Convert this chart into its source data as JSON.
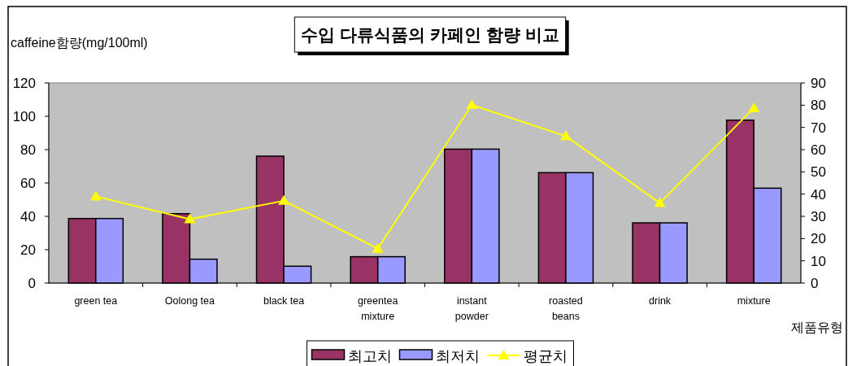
{
  "chart_data": {
    "type": "bar",
    "title": "수입 다류식품의 카페인 함량 비교",
    "ylabel": "caffeine함량(mg/100ml)",
    "xlabel": "제품유형",
    "categories": [
      "green tea",
      "Oolong tea",
      "black tea",
      "greentea mixture",
      "instant powder",
      "roasted beans",
      "drink",
      "mixture"
    ],
    "series": [
      {
        "name": "최고치",
        "color": "#993366",
        "values": [
          38.7,
          41.6,
          76.1,
          15.8,
          80.3,
          66.2,
          36.1,
          97.7
        ]
      },
      {
        "name": "최저치",
        "color": "#9999ff",
        "values": [
          38.7,
          14.3,
          10.1,
          15.8,
          80.3,
          66.2,
          36.1,
          56.9
        ]
      },
      {
        "name": "평균치",
        "type": "line",
        "axis": "y2",
        "color": "#ffff00",
        "marker": "triangle",
        "values": [
          39.0,
          28.7,
          37.0,
          15.5,
          80.1,
          66.1,
          36.0,
          78.7
        ]
      }
    ],
    "ylim": [
      0,
      120
    ],
    "yticks": [
      0,
      20,
      40,
      60,
      80,
      100,
      120
    ],
    "y2lim": [
      0,
      90
    ],
    "y2ticks": [
      0,
      10,
      20,
      30,
      40,
      50,
      60,
      70,
      80,
      90
    ],
    "grid": false,
    "legend": "bottom"
  }
}
